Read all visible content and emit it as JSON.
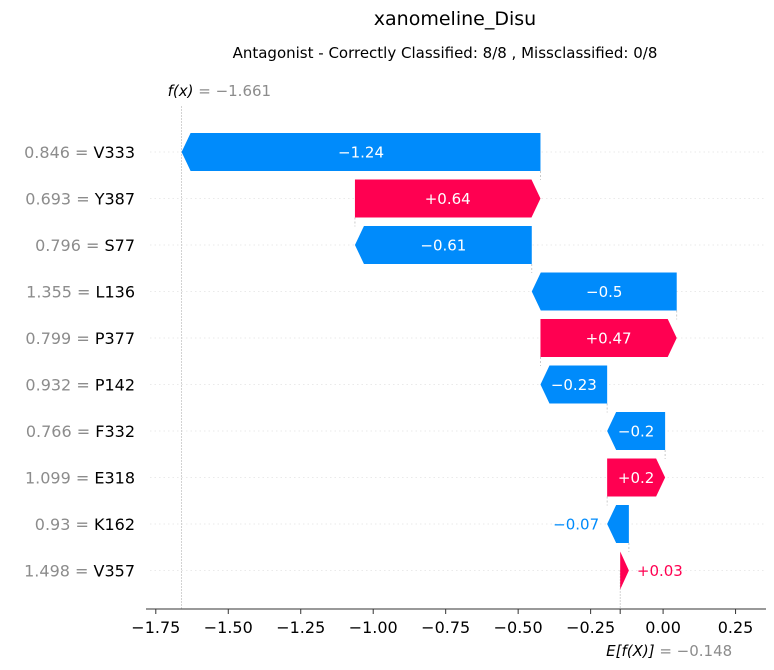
{
  "chart_data": {
    "type": "waterfall",
    "title": "xanomeline_Disu",
    "subtitle": "Antagonist - Correctly Classified: 8/8 , Missclassified: 0/8",
    "fx": {
      "label": "f(x)",
      "value_text": "= −1.661",
      "value": -1.661
    },
    "base": {
      "label": "E[f(X)]",
      "value_text": "= −0.148",
      "value": -0.148
    },
    "xlim": [
      -1.77,
      0.355
    ],
    "xticks": [
      -1.75,
      -1.5,
      -1.25,
      -1.0,
      -0.75,
      -0.5,
      -0.25,
      0.0,
      0.25
    ],
    "xtick_labels": [
      "−1.75",
      "−1.50",
      "−1.25",
      "−1.00",
      "−0.75",
      "−0.50",
      "−0.25",
      "0.00",
      "0.25"
    ],
    "grid": false,
    "rows": [
      {
        "value_text": "0.846 =",
        "feature": "V333",
        "start": -0.423,
        "end": -1.661,
        "contribution": -1.24,
        "label": "−1.24"
      },
      {
        "value_text": "0.693 =",
        "feature": "Y387",
        "start": -1.063,
        "end": -0.423,
        "contribution": 0.64,
        "label": "+0.64"
      },
      {
        "value_text": "0.796 =",
        "feature": "S77",
        "start": -0.453,
        "end": -1.063,
        "contribution": -0.61,
        "label": "−0.61"
      },
      {
        "value_text": "1.355 =",
        "feature": "L136",
        "start": 0.047,
        "end": -0.453,
        "contribution": -0.5,
        "label": "−0.5"
      },
      {
        "value_text": "0.799 =",
        "feature": "P377",
        "start": -0.423,
        "end": 0.047,
        "contribution": 0.47,
        "label": "+0.47"
      },
      {
        "value_text": "0.932 =",
        "feature": "P142",
        "start": -0.193,
        "end": -0.423,
        "contribution": -0.23,
        "label": "−0.23"
      },
      {
        "value_text": "0.766 =",
        "feature": "F332",
        "start": 0.007,
        "end": -0.193,
        "contribution": -0.2,
        "label": "−0.2"
      },
      {
        "value_text": "1.099 =",
        "feature": "E318",
        "start": -0.193,
        "end": 0.007,
        "contribution": 0.2,
        "label": "+0.2"
      },
      {
        "value_text": "0.93 =",
        "feature": "K162",
        "start": -0.118,
        "end": -0.193,
        "contribution": -0.07,
        "label": "−0.07"
      },
      {
        "value_text": "1.498 =",
        "feature": "V357",
        "start": -0.148,
        "end": -0.118,
        "contribution": 0.03,
        "label": "+0.03"
      }
    ],
    "colors": {
      "positive": "#ff0051",
      "negative": "#008bfb",
      "value_gray": "#8c8c8c"
    }
  }
}
